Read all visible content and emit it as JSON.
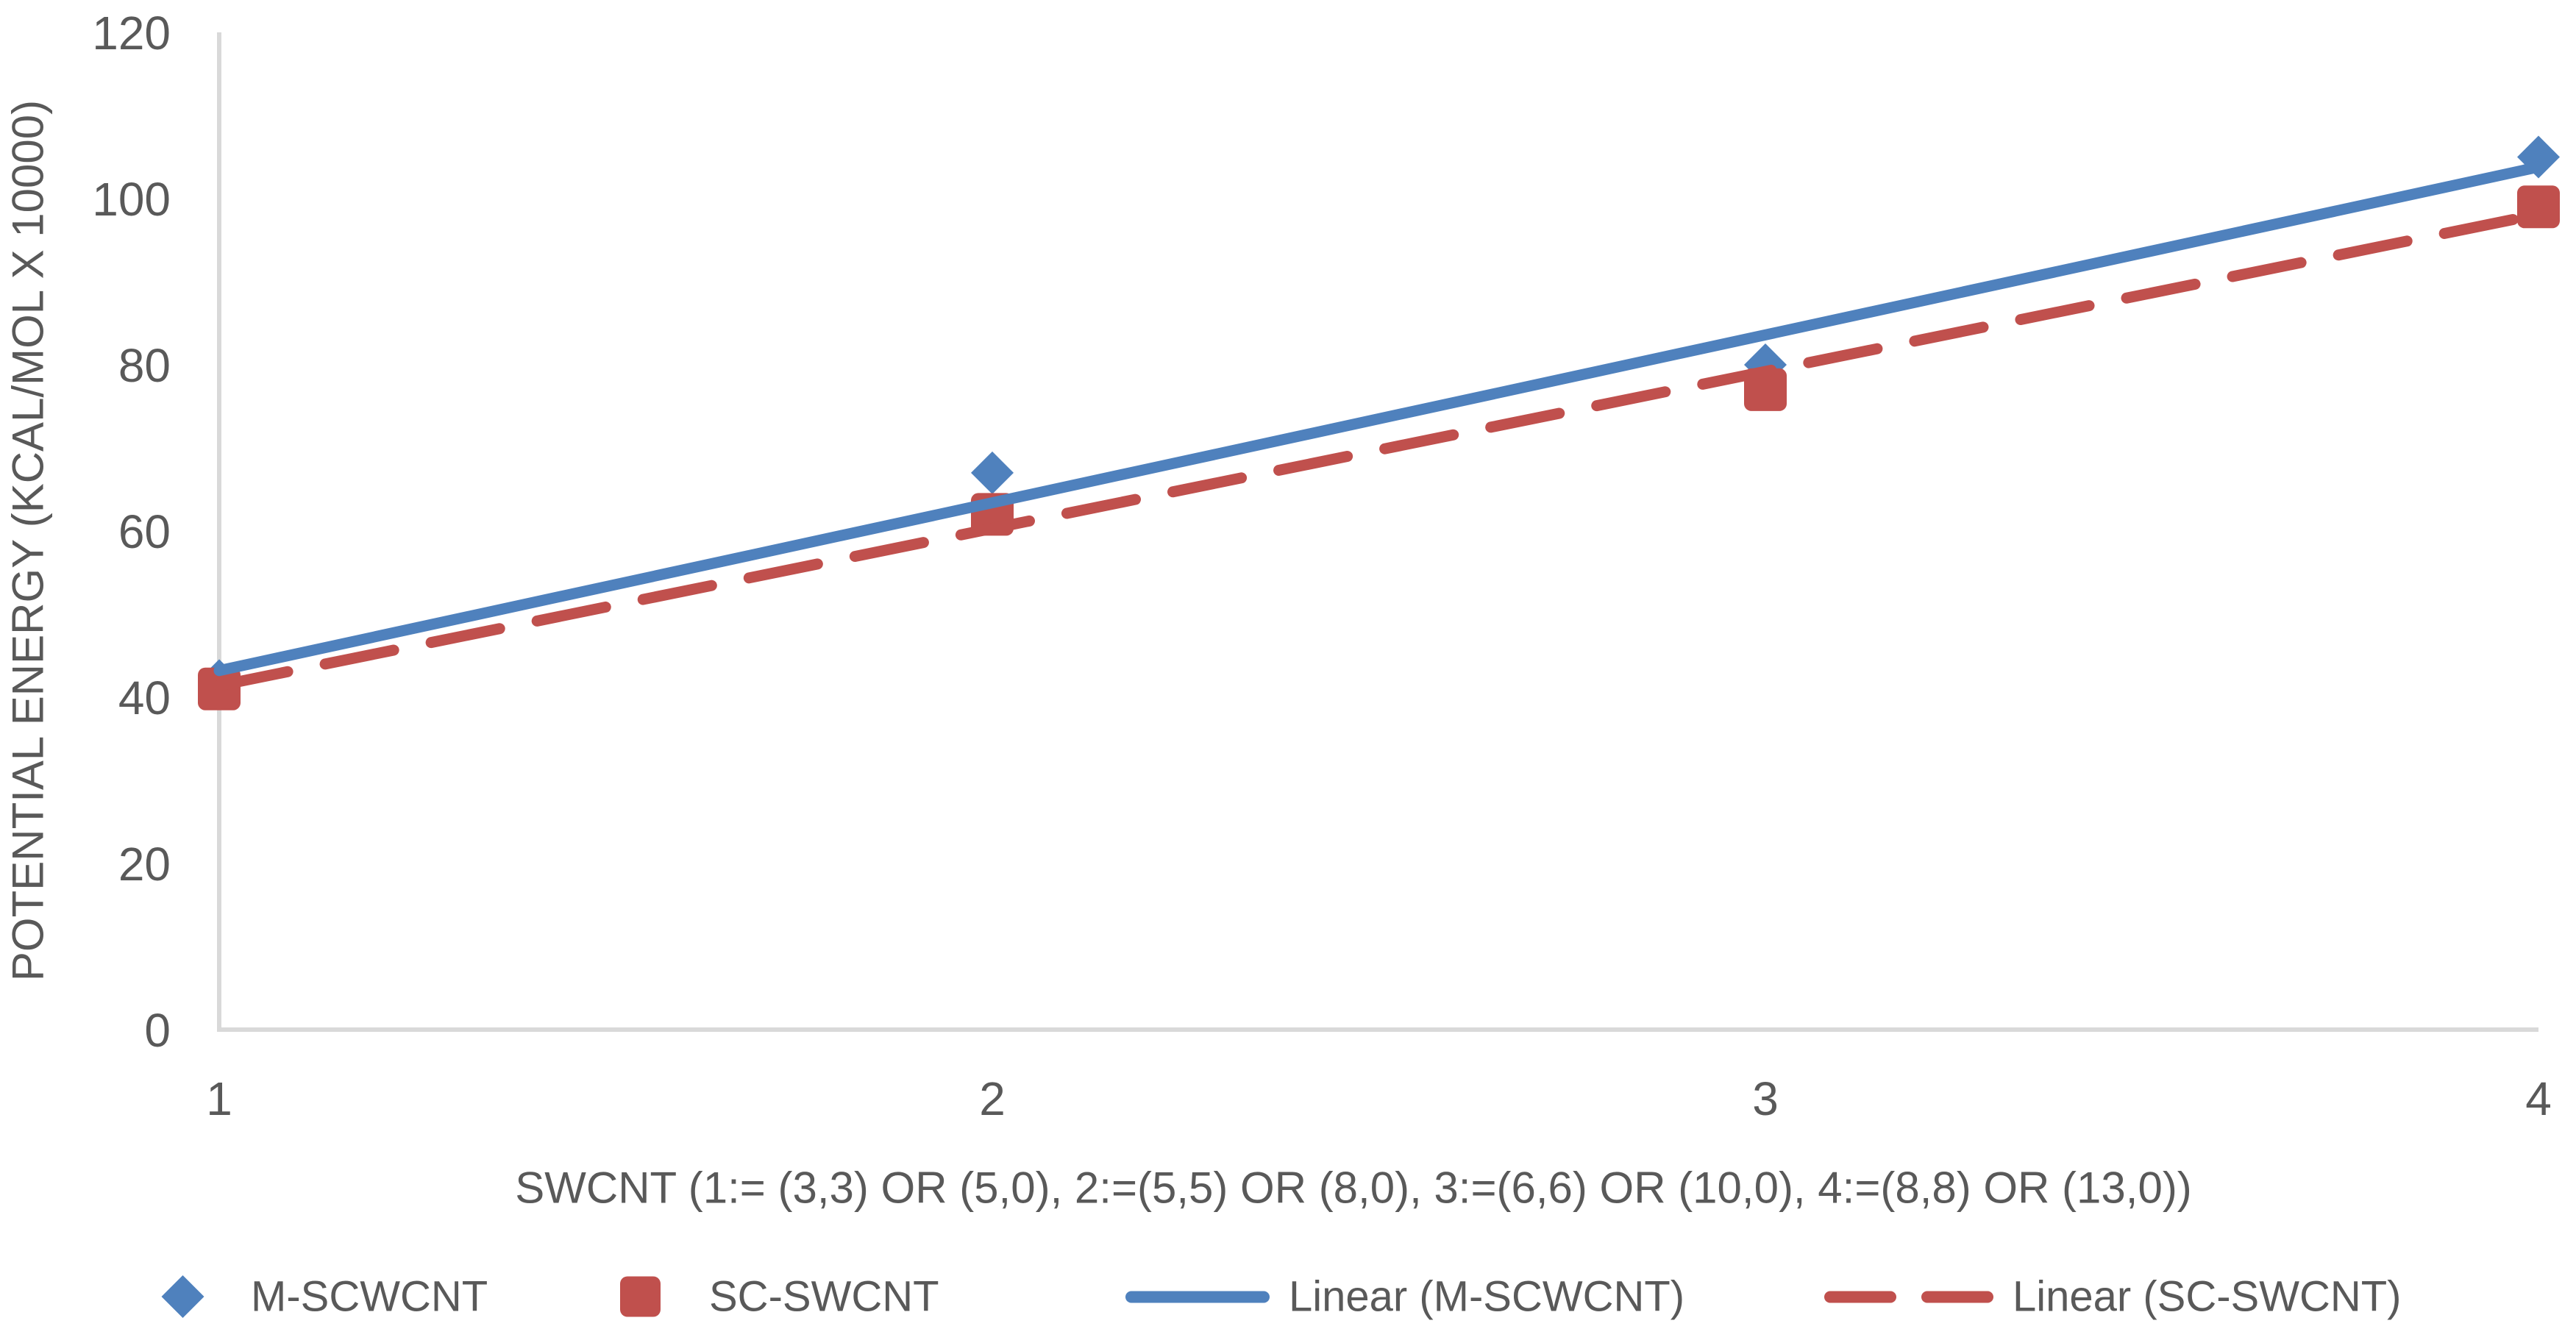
{
  "colors": {
    "series_blue": "#4F81BD",
    "series_red": "#C0504D",
    "text_gray": "#595959",
    "axis_gray": "#D9D9D9",
    "background": "#FFFFFF"
  },
  "chart_data": {
    "type": "scatter",
    "title": "",
    "xlabel": "SWCNT (1:= (3,3) OR (5,0), 2:=(5,5) OR (8,0), 3:=(6,6) OR (10,0), 4:=(8,8) OR (13,0))",
    "ylabel": "POTENTIAL ENERGY (KCAL/MOL X 10000)",
    "x": [
      1,
      2,
      3,
      4
    ],
    "x_tick_labels": [
      "1",
      "2",
      "3",
      "4"
    ],
    "y_ticks": [
      0,
      20,
      40,
      60,
      80,
      100,
      120
    ],
    "xlim": [
      1,
      4
    ],
    "ylim": [
      0,
      120
    ],
    "grid": false,
    "legend_position": "bottom",
    "series": [
      {
        "name": "M-SCWCNT",
        "marker": "diamond",
        "color": "#4F81BD",
        "values": [
          42,
          67,
          80,
          105
        ]
      },
      {
        "name": "SC-SWCNT",
        "marker": "square",
        "color": "#C0504D",
        "values": [
          41,
          62,
          77,
          99
        ]
      }
    ],
    "trendlines": [
      {
        "name": "Linear (M-SCWCNT)",
        "series": "M-SCWCNT",
        "style": "solid",
        "color": "#4F81BD"
      },
      {
        "name": "Linear (SC-SWCNT)",
        "series": "SC-SWCNT",
        "style": "dashed",
        "color": "#C0504D"
      }
    ]
  }
}
